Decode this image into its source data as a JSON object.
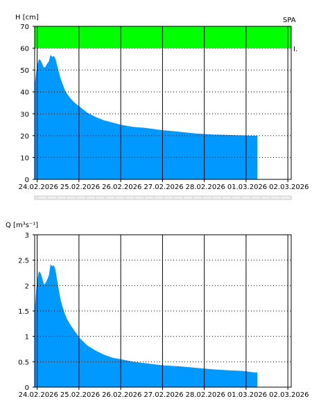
{
  "chart_data": [
    {
      "type": "area",
      "ylabel": "H [cm]",
      "station_label": "SPA",
      "band_label": "I.",
      "ylim": [
        0,
        70
      ],
      "y_ticks": [
        "0",
        "10",
        "20",
        "30",
        "40",
        "50",
        "60",
        "70"
      ],
      "x_tick_labels": [
        "24.02.2026",
        "25.02.2026",
        "26.02.2026",
        "27.02.2026",
        "28.02.2026",
        "01.03.2026",
        "02.03.2026"
      ],
      "x_unit": "days since 23.02.2026 00:00",
      "xlim": [
        0.94,
        7.08
      ],
      "threshold_band": {
        "from": 60,
        "to": 70,
        "color": "#00ff00"
      },
      "fill_color": "#0099ff",
      "grid": true,
      "x": [
        0.94,
        0.97,
        1.0,
        1.04,
        1.08,
        1.12,
        1.16,
        1.2,
        1.24,
        1.28,
        1.32,
        1.36,
        1.4,
        1.44,
        1.48,
        1.52,
        1.56,
        1.6,
        1.66,
        1.72,
        1.8,
        1.9,
        2.0,
        2.2,
        2.4,
        2.6,
        2.8,
        3.0,
        3.3,
        3.6,
        4.0,
        4.4,
        4.8,
        5.2,
        5.6,
        5.9,
        6.0,
        6.1,
        6.2,
        6.27
      ],
      "values": [
        43,
        48,
        52,
        55,
        54.5,
        53,
        51,
        51.5,
        53,
        54,
        57,
        56,
        56.5,
        55,
        52,
        49,
        46,
        44,
        41,
        39,
        37,
        35,
        33.5,
        30.5,
        28.5,
        27,
        26,
        25,
        24,
        23.5,
        22.5,
        21.8,
        21,
        20.5,
        20.3,
        20.1,
        20.1,
        20,
        20,
        20
      ]
    },
    {
      "type": "area",
      "ylabel": "Q [m³s⁻¹]",
      "ylim": [
        0,
        3
      ],
      "y_ticks": [
        "0",
        "0.5",
        "1",
        "1.5",
        "2",
        "2.5",
        "3"
      ],
      "x_tick_labels": [
        "24.02.2026",
        "25.02.2026",
        "26.02.2026",
        "27.02.2026",
        "28.02.2026",
        "01.03.2026",
        "02.03.2026"
      ],
      "x_unit": "days since 23.02.2026 00:00",
      "xlim": [
        0.94,
        7.08
      ],
      "fill_color": "#0099ff",
      "grid": true,
      "x": [
        0.94,
        0.97,
        1.0,
        1.04,
        1.08,
        1.12,
        1.16,
        1.2,
        1.24,
        1.28,
        1.32,
        1.36,
        1.4,
        1.44,
        1.48,
        1.52,
        1.56,
        1.6,
        1.66,
        1.72,
        1.8,
        1.9,
        2.0,
        2.2,
        2.4,
        2.6,
        2.8,
        3.0,
        3.3,
        3.6,
        4.0,
        4.4,
        4.8,
        5.2,
        5.6,
        5.9,
        6.0,
        6.1,
        6.2,
        6.27
      ],
      "values": [
        1.5,
        1.85,
        2.1,
        2.28,
        2.25,
        2.15,
        2.02,
        2.05,
        2.12,
        2.2,
        2.42,
        2.38,
        2.4,
        2.3,
        2.1,
        1.9,
        1.72,
        1.6,
        1.45,
        1.33,
        1.22,
        1.1,
        0.98,
        0.82,
        0.72,
        0.64,
        0.58,
        0.55,
        0.5,
        0.47,
        0.43,
        0.41,
        0.38,
        0.35,
        0.33,
        0.32,
        0.31,
        0.3,
        0.29,
        0.29
      ]
    }
  ]
}
